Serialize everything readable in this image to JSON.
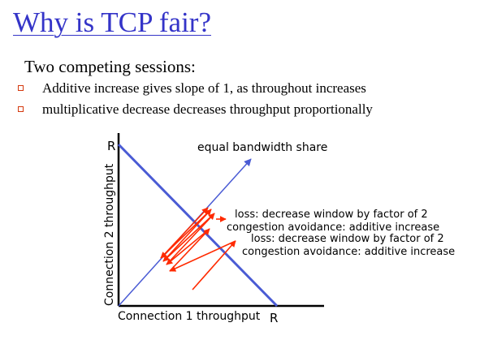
{
  "slide": {
    "title": "Why is TCP fair?",
    "subtitle": "Two competing sessions:",
    "bullets": [
      "Additive increase gives slope of 1, as throughout increases",
      "multiplicative decrease decreases throughput proportionally"
    ]
  },
  "diagram": {
    "y_axis_label": "Connection 2 throughput",
    "x_axis_label": "Connection 1 throughput",
    "y_axis_end_label": "R",
    "x_axis_end_label": "R",
    "equal_share_label": "equal bandwidth share",
    "annotations": [
      "loss: decrease window by factor of 2",
      "congestion avoidance: additive increase",
      "loss: decrease window by factor of 2",
      "congestion avoidance: additive increase"
    ],
    "colors": {
      "title": "#3434c8",
      "line": "#4a5bd4",
      "arrows": "#ff2a00",
      "bullet": "#d4380d"
    }
  }
}
